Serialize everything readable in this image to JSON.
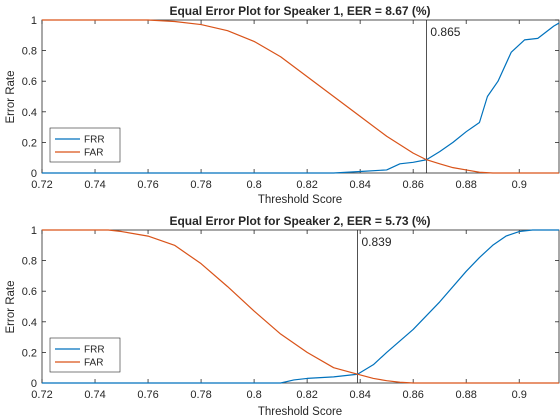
{
  "colors": {
    "FRR": "#0072BD",
    "FAR": "#D95319",
    "axis": "#262626",
    "threshold_line": "#262626"
  },
  "chart_data": [
    {
      "type": "line",
      "title": "Equal Error Plot for Speaker 1, EER = 8.67 (%)",
      "xlabel": "Threshold Score",
      "ylabel": "Error Rate",
      "xlim": [
        0.72,
        0.915
      ],
      "ylim": [
        0,
        1
      ],
      "xticks": [
        "0.72",
        "0.74",
        "0.76",
        "0.78",
        "0.8",
        "0.82",
        "0.84",
        "0.86",
        "0.88",
        "0.9"
      ],
      "yticks": [
        "0",
        "0.2",
        "0.4",
        "0.6",
        "0.8",
        "1"
      ],
      "grid": false,
      "legend": "bottom-left",
      "threshold": 0.865,
      "threshold_label": "0.865",
      "series": [
        {
          "name": "FRR",
          "color": "#0072BD",
          "x": [
            0.72,
            0.8,
            0.83,
            0.835,
            0.84,
            0.85,
            0.855,
            0.86,
            0.865,
            0.87,
            0.875,
            0.88,
            0.885,
            0.888,
            0.892,
            0.897,
            0.902,
            0.907,
            0.91,
            0.913,
            0.915
          ],
          "y": [
            0,
            0,
            0,
            0.005,
            0.01,
            0.02,
            0.06,
            0.07,
            0.0867,
            0.14,
            0.2,
            0.27,
            0.33,
            0.5,
            0.6,
            0.79,
            0.87,
            0.88,
            0.92,
            0.96,
            0.98
          ]
        },
        {
          "name": "FAR",
          "color": "#D95319",
          "x": [
            0.72,
            0.76,
            0.77,
            0.78,
            0.79,
            0.8,
            0.81,
            0.82,
            0.83,
            0.84,
            0.85,
            0.86,
            0.865,
            0.87,
            0.875,
            0.88,
            0.885,
            0.89,
            0.915
          ],
          "y": [
            1,
            1,
            0.99,
            0.97,
            0.93,
            0.86,
            0.76,
            0.63,
            0.5,
            0.37,
            0.24,
            0.13,
            0.0867,
            0.06,
            0.035,
            0.02,
            0.005,
            0,
            0
          ]
        }
      ]
    },
    {
      "type": "line",
      "title": "Equal Error Plot for Speaker 2, EER = 5.73 (%)",
      "xlabel": "Threshold Score",
      "ylabel": "Error Rate",
      "xlim": [
        0.72,
        0.915
      ],
      "ylim": [
        0,
        1
      ],
      "xticks": [
        "0.72",
        "0.74",
        "0.76",
        "0.78",
        "0.8",
        "0.82",
        "0.84",
        "0.86",
        "0.88",
        "0.9"
      ],
      "yticks": [
        "0",
        "0.2",
        "0.4",
        "0.6",
        "0.8",
        "1"
      ],
      "grid": false,
      "legend": "bottom-left",
      "threshold": 0.839,
      "threshold_label": "0.839",
      "series": [
        {
          "name": "FRR",
          "color": "#0072BD",
          "x": [
            0.72,
            0.81,
            0.815,
            0.82,
            0.83,
            0.839,
            0.845,
            0.85,
            0.86,
            0.87,
            0.88,
            0.885,
            0.89,
            0.895,
            0.9,
            0.905,
            0.915
          ],
          "y": [
            0,
            0,
            0.02,
            0.03,
            0.04,
            0.0573,
            0.12,
            0.2,
            0.35,
            0.53,
            0.73,
            0.82,
            0.9,
            0.96,
            0.99,
            1,
            1
          ]
        },
        {
          "name": "FAR",
          "color": "#D95319",
          "x": [
            0.72,
            0.745,
            0.75,
            0.76,
            0.77,
            0.78,
            0.79,
            0.8,
            0.81,
            0.82,
            0.83,
            0.839,
            0.845,
            0.85,
            0.855,
            0.86,
            0.915
          ],
          "y": [
            1,
            1,
            0.99,
            0.96,
            0.9,
            0.78,
            0.63,
            0.47,
            0.32,
            0.2,
            0.1,
            0.0573,
            0.03,
            0.015,
            0.005,
            0,
            0
          ]
        }
      ]
    }
  ]
}
